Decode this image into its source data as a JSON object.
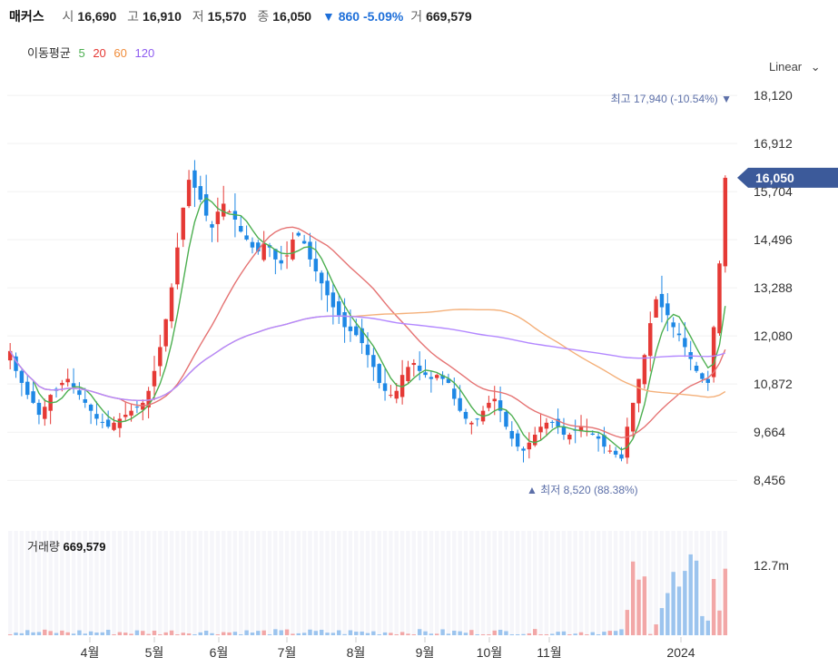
{
  "header": {
    "name": "매커스",
    "open_label": "시",
    "open": "16,690",
    "high_label": "고",
    "high": "16,910",
    "low_label": "저",
    "low": "15,570",
    "close_label": "종",
    "close": "16,050",
    "change": "▼ 860 -5.09%",
    "volume_label": "거",
    "volume": "669,579"
  },
  "ma_legend": {
    "label": "이동평균",
    "items": [
      {
        "text": "5",
        "color": "#4caf50"
      },
      {
        "text": "20",
        "color": "#e53935"
      },
      {
        "text": "60",
        "color": "#f08c3a"
      },
      {
        "text": "120",
        "color": "#8e5cf0"
      }
    ]
  },
  "scale_mode": "Linear",
  "volume_panel": {
    "label": "거래량",
    "value": "669,579",
    "axis_label": "12.7m"
  },
  "colors": {
    "up": "#e53935",
    "down": "#1e88e5",
    "ma5": "#4caf50",
    "ma20": "#e57373",
    "ma60": "#f4b07a",
    "ma120": "#b388ff",
    "badge": "#3c5a9a"
  },
  "chart_data": {
    "type": "candlestick",
    "y_ticks": [
      8456,
      9664,
      10872,
      12080,
      13288,
      14496,
      15704,
      16912,
      18120
    ],
    "y_tick_labels": [
      "8,456",
      "9,664",
      "10,872",
      "12,080",
      "13,288",
      "14,496",
      "15,704",
      "16,912",
      "18,120"
    ],
    "x_ticks": [
      "4월",
      "5월",
      "6월",
      "7월",
      "8월",
      "9월",
      "10월",
      "11월",
      "2024"
    ],
    "current_price": "16,050",
    "max_marker": {
      "label": "최고",
      "value": "17,940 (-10.54%)"
    },
    "min_marker": {
      "label": "최저",
      "value": "8,520 (88.38%)"
    },
    "close_series": [
      11700,
      11200,
      10900,
      10600,
      10400,
      10100,
      10300,
      10600,
      10700,
      10900,
      11000,
      10800,
      10600,
      10400,
      10200,
      10000,
      9900,
      9800,
      9900,
      10000,
      10100,
      10200,
      10300,
      10400,
      10700,
      11200,
      11800,
      12500,
      13300,
      14300,
      15300,
      16000,
      15800,
      15500,
      15100,
      14800,
      15200,
      15400,
      15200,
      15000,
      14700,
      14500,
      14300,
      14200,
      14400,
      14300,
      14000,
      13900,
      14100,
      14500,
      14600,
      14400,
      14000,
      13700,
      13400,
      13100,
      12800,
      12600,
      12300,
      12200,
      12100,
      11900,
      11600,
      11300,
      10900,
      10700,
      10600,
      10700,
      11100,
      11300,
      11400,
      11200,
      11100,
      11000,
      11100,
      11000,
      10900,
      10500,
      10200,
      10000,
      9900,
      10000,
      10200,
      10400,
      10500,
      10200,
      9800,
      9500,
      9300,
      9200,
      9400,
      9600,
      9800,
      9900,
      9900,
      9800,
      9600,
      9600,
      9700,
      9800,
      9700,
      9600,
      9500,
      9300,
      9200,
      9100,
      9000,
      9800,
      10400,
      11000,
      11600,
      12400,
      13000,
      12800,
      12600,
      12300,
      12100,
      11800,
      11500,
      11200,
      11000,
      10900,
      12300,
      13900,
      16050
    ],
    "volume_max": "12.7m"
  }
}
